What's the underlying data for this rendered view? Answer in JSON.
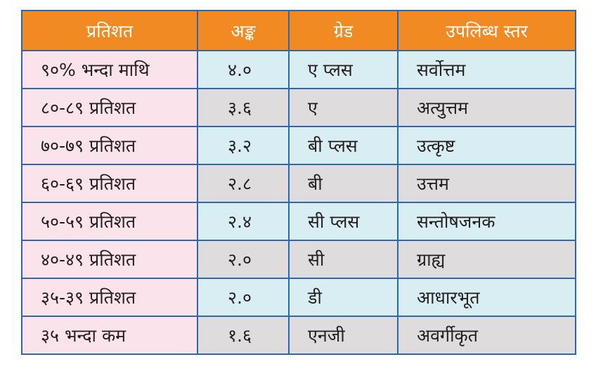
{
  "table": {
    "headers": {
      "percent": "प्रतिशत",
      "points": "अङ्क",
      "grade": "ग्रेड",
      "level": "उपलिब्ध स्तर"
    },
    "rows": [
      {
        "percent": "९०% भन्दा माथि",
        "points": "४.०",
        "grade": "ए प्लस",
        "level": "सर्वोत्तम"
      },
      {
        "percent": "८०-८९ प्रतिशत",
        "points": "३.६",
        "grade": "ए",
        "level": "अत्युत्तम"
      },
      {
        "percent": "७०-७९ प्रतिशत",
        "points": "३.२",
        "grade": "बी प्लस",
        "level": "उत्कृष्ट"
      },
      {
        "percent": "६०-६९ प्रतिशत",
        "points": "२.८",
        "grade": "बी",
        "level": "उत्तम"
      },
      {
        "percent": "५०-५९ प्रतिशत",
        "points": "२.४",
        "grade": "सी प्लस",
        "level": "सन्तोषजनक"
      },
      {
        "percent": "४०-४९ प्रतिशत",
        "points": "२.०",
        "grade": "सी",
        "level": "ग्राह्य"
      },
      {
        "percent": "३५-३९ प्रतिशत",
        "points": "२.०",
        "grade": "डी",
        "level": "आधारभूत"
      },
      {
        "percent": "३५ भन्दा कम",
        "points": "१.६",
        "grade": "एनजी",
        "level": "अवर्गीकृत"
      }
    ]
  },
  "colors": {
    "header_bg": "#f18a23",
    "border": "#2e67b1",
    "percent_cell_bg": "#fbe3ec",
    "odd_row_bg": "#d9eef2",
    "even_row_bg": "#dedcdc"
  }
}
